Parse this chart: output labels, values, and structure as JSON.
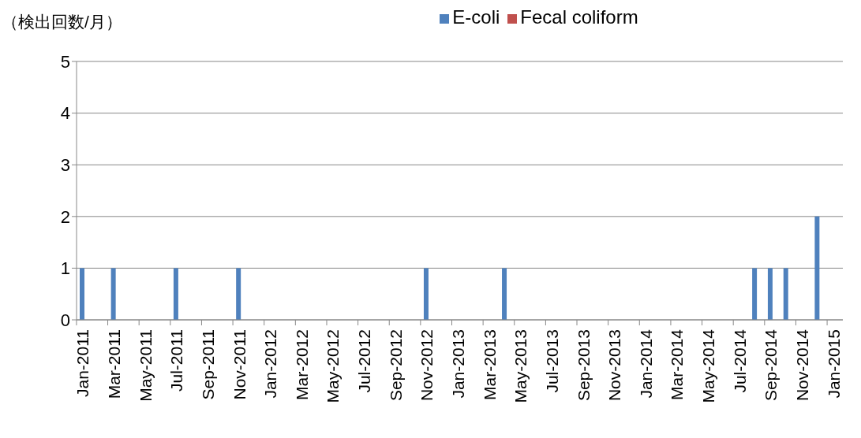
{
  "chart_data": {
    "type": "bar",
    "ylabel": "（検出回数/月）",
    "categories": [
      "Jan-2011",
      null,
      "Mar-2011",
      null,
      "May-2011",
      null,
      "Jul-2011",
      null,
      "Sep-2011",
      null,
      "Nov-2011",
      null,
      "Jan-2012",
      null,
      "Mar-2012",
      null,
      "May-2012",
      null,
      "Jul-2012",
      null,
      "Sep-2012",
      null,
      "Nov-2012",
      null,
      "Jan-2013",
      null,
      "Mar-2013",
      null,
      "May-2013",
      null,
      "Jul-2013",
      null,
      "Sep-2013",
      null,
      "Nov-2013",
      null,
      "Jan-2014",
      null,
      "Mar-2014",
      null,
      "May-2014",
      null,
      "Jul-2014",
      null,
      "Sep-2014",
      null,
      "Nov-2014",
      null,
      "Jan-2015"
    ],
    "series": [
      {
        "name": "E-coli",
        "color": "#4f81bd",
        "values": [
          1,
          0,
          1,
          0,
          0,
          0,
          1,
          0,
          0,
          0,
          1,
          0,
          0,
          0,
          0,
          0,
          0,
          0,
          0,
          0,
          0,
          0,
          1,
          0,
          0,
          0,
          0,
          1,
          0,
          0,
          0,
          0,
          0,
          0,
          0,
          0,
          0,
          0,
          0,
          0,
          0,
          0,
          0,
          1,
          1,
          1,
          0,
          2,
          0
        ]
      },
      {
        "name": "Fecal coliform",
        "color": "#c0504d",
        "values": [
          0,
          0,
          0,
          0,
          0,
          0,
          0,
          0,
          0,
          0,
          0,
          0,
          0,
          0,
          0,
          0,
          0,
          0,
          0,
          0,
          0,
          0,
          0,
          0,
          0,
          0,
          0,
          0,
          0,
          0,
          0,
          0,
          0,
          0,
          0,
          0,
          0,
          0,
          0,
          0,
          0,
          0,
          0,
          0,
          0,
          0,
          0,
          0,
          0
        ]
      }
    ],
    "ylim": [
      0,
      5
    ],
    "yticks": [
      0,
      1,
      2,
      3,
      4,
      5
    ],
    "grid": "y",
    "legend": "top"
  }
}
